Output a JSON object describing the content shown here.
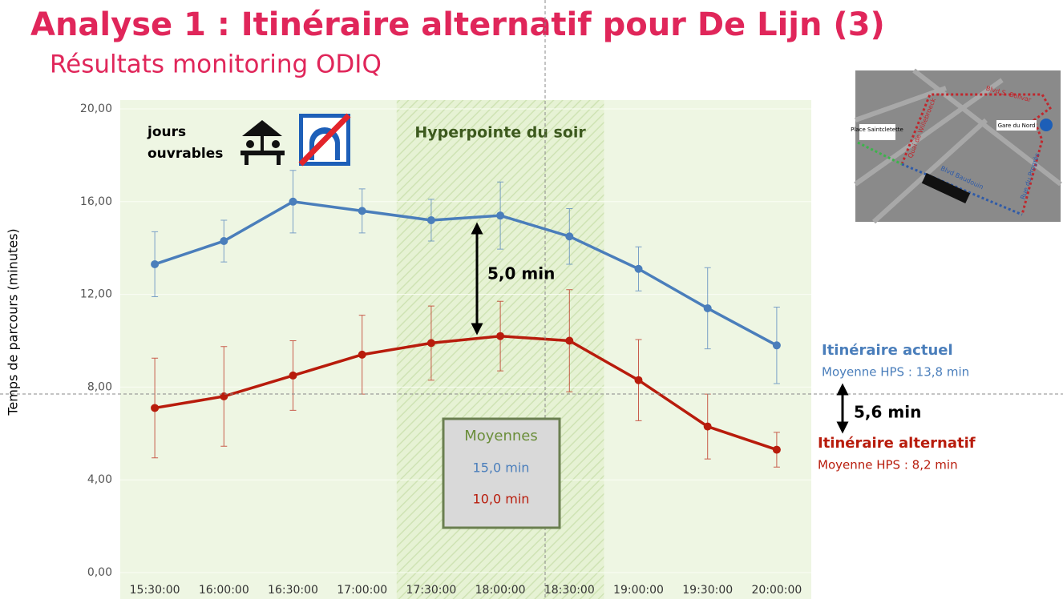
{
  "chart_data": {
    "type": "line",
    "title": "Analyse 1 : Itinéraire alternatif pour De Lijn (3)",
    "subtitle": "Résultats monitoring ODIQ",
    "y_label": "Temps de parcours (minutes)",
    "categories": [
      "15:30:00",
      "16:00:00",
      "16:30:00",
      "17:00:00",
      "17:30:00",
      "18:00:00",
      "18:30:00",
      "19:00:00",
      "19:30:00",
      "20:00:00"
    ],
    "ylim": [
      0,
      20
    ],
    "yticks": [
      {
        "value": 0,
        "label": "0,00"
      },
      {
        "value": 4,
        "label": "4,00"
      },
      {
        "value": 8,
        "label": "8,00"
      },
      {
        "value": 12,
        "label": "12,00"
      },
      {
        "value": 16,
        "label": "16,00"
      },
      {
        "value": 20,
        "label": "20,00"
      }
    ],
    "grid": true,
    "series": [
      {
        "name": "Itinéraire actuel",
        "note": "Moyenne HPS : 13,8 min",
        "color": "#4a7ebb",
        "values": [
          13.3,
          14.3,
          16.0,
          15.6,
          15.2,
          15.4,
          14.5,
          13.1,
          11.4,
          9.8
        ],
        "errors": [
          1.4,
          0.9,
          1.35,
          0.95,
          0.9,
          1.45,
          1.2,
          0.95,
          1.75,
          1.65
        ]
      },
      {
        "name": "Itinéraire alternatif",
        "note": "Moyenne HPS : 8,2 min",
        "color": "#b81c0c",
        "values": [
          7.1,
          7.6,
          8.5,
          9.4,
          9.9,
          10.2,
          10.0,
          8.3,
          6.3,
          5.3
        ],
        "errors": [
          2.15,
          2.15,
          1.5,
          1.7,
          1.6,
          1.5,
          2.2,
          1.75,
          1.4,
          0.75
        ]
      }
    ],
    "highlight": {
      "label": "Hyperpointe du soir",
      "start": "17:30:00",
      "end": "18:30:00"
    },
    "day_label": [
      "jours",
      "ouvrables"
    ],
    "gap_peak": "5,0 min",
    "gap_average": "5,6 min",
    "averages_box": {
      "title": "Moyennes",
      "lines": [
        "15,0 min",
        "10,0 min"
      ]
    }
  },
  "map": {
    "labels": [
      "Place Saintcletette",
      "Gare du Nord",
      "Blvd S. Bolivar",
      "Quai de Willebroeck",
      "Blvd Baudouin",
      "Rue du Progrès"
    ]
  }
}
